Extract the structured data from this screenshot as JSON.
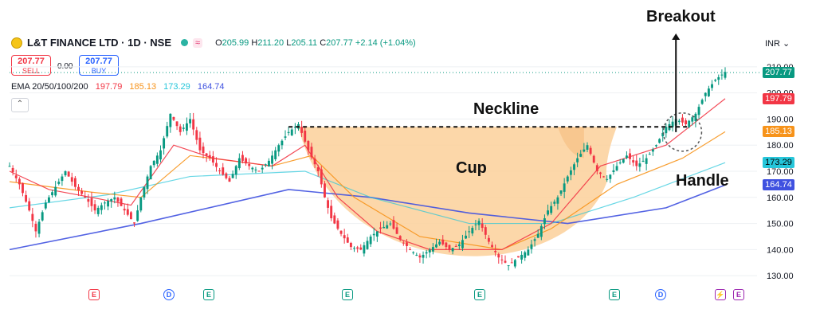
{
  "header": {
    "symbol": "L&T FINANCE LTD · 1D · NSE",
    "ohlc": {
      "o_label": "O",
      "o": "205.99",
      "h_label": "H",
      "h": "211.20",
      "l_label": "L",
      "l": "205.11",
      "c_label": "C",
      "c": "207.77",
      "change": "+2.14 (+1.04%)"
    },
    "pill": "≈"
  },
  "trade": {
    "sell_price": "207.77",
    "sell_label": "SELL",
    "spread": "0.00",
    "buy_price": "207.77",
    "buy_label": "BUY"
  },
  "ema": {
    "label": "EMA 20/50/100/200",
    "values": [
      "197.79",
      "185.13",
      "173.29",
      "164.74"
    ],
    "colors": [
      "#f23645",
      "#f7931a",
      "#26c6da",
      "#3f51e0"
    ]
  },
  "currency": "INR",
  "colors": {
    "up": "#089981",
    "down": "#f23645",
    "cup_fill": "#fbd09a",
    "last_price": "#089981"
  },
  "annotations": {
    "breakout": "Breakout",
    "neckline": "Neckline",
    "cup": "Cup",
    "handle": "Handle"
  },
  "events": [
    {
      "type": "E",
      "color": "#f23645"
    },
    {
      "type": "D",
      "color": "#2962ff"
    },
    {
      "type": "E",
      "color": "#089981"
    },
    {
      "type": "E",
      "color": "#089981"
    },
    {
      "type": "E",
      "color": "#089981"
    },
    {
      "type": "E",
      "color": "#089981"
    },
    {
      "type": "D",
      "color": "#2962ff"
    },
    {
      "type": "⚡",
      "color": "#9c27b0"
    },
    {
      "type": "E",
      "color": "#9c27b0"
    }
  ],
  "chart_data": {
    "type": "line",
    "y_axis_ticks": [
      130,
      140,
      150,
      160,
      170,
      180,
      190,
      200,
      210
    ],
    "ylim": [
      127,
      213
    ],
    "price_tags": [
      {
        "value": 207.77,
        "color": "#089981",
        "text": "207.77"
      },
      {
        "value": 197.79,
        "color": "#f23645",
        "text": "197.79"
      },
      {
        "value": 185.13,
        "color": "#f7931a",
        "text": "185.13"
      },
      {
        "value": 173.29,
        "color": "#26c6da",
        "text": "173.29"
      },
      {
        "value": 164.74,
        "color": "#3f51e0",
        "text": "164.74"
      }
    ],
    "neckline": 187,
    "price_path": [
      [
        0,
        172
      ],
      [
        3,
        165
      ],
      [
        6,
        155
      ],
      [
        8,
        147
      ],
      [
        11,
        158
      ],
      [
        14,
        164
      ],
      [
        17,
        170
      ],
      [
        20,
        164
      ],
      [
        23,
        160
      ],
      [
        26,
        155
      ],
      [
        29,
        158
      ],
      [
        32,
        160
      ],
      [
        35,
        155
      ],
      [
        38,
        150
      ],
      [
        40,
        160
      ],
      [
        43,
        172
      ],
      [
        46,
        178
      ],
      [
        49,
        192
      ],
      [
        52,
        185
      ],
      [
        55,
        190
      ],
      [
        58,
        178
      ],
      [
        61,
        175
      ],
      [
        64,
        170
      ],
      [
        67,
        166
      ],
      [
        70,
        175
      ],
      [
        73,
        172
      ],
      [
        76,
        170
      ],
      [
        79,
        174
      ],
      [
        82,
        180
      ],
      [
        85,
        185
      ],
      [
        88,
        188
      ],
      [
        91,
        178
      ],
      [
        94,
        170
      ],
      [
        96,
        160
      ],
      [
        98,
        152
      ],
      [
        101,
        146
      ],
      [
        104,
        141
      ],
      [
        107,
        140
      ],
      [
        110,
        145
      ],
      [
        113,
        148
      ],
      [
        116,
        150
      ],
      [
        119,
        144
      ],
      [
        122,
        140
      ],
      [
        125,
        137
      ],
      [
        128,
        140
      ],
      [
        131,
        143
      ],
      [
        134,
        140
      ],
      [
        137,
        142
      ],
      [
        140,
        147
      ],
      [
        143,
        151
      ],
      [
        146,
        143
      ],
      [
        149,
        137
      ],
      [
        152,
        134
      ],
      [
        155,
        137
      ],
      [
        158,
        140
      ],
      [
        161,
        146
      ],
      [
        164,
        155
      ],
      [
        167,
        160
      ],
      [
        170,
        168
      ],
      [
        173,
        175
      ],
      [
        176,
        180
      ],
      [
        179,
        170
      ],
      [
        182,
        167
      ],
      [
        185,
        172
      ],
      [
        188,
        176
      ],
      [
        191,
        172
      ],
      [
        194,
        175
      ],
      [
        197,
        180
      ],
      [
        200,
        187
      ],
      [
        203,
        190
      ],
      [
        206,
        188
      ],
      [
        209,
        192
      ],
      [
        212,
        200
      ],
      [
        215,
        205
      ],
      [
        218,
        208
      ]
    ],
    "ema_20": [
      [
        0,
        170
      ],
      [
        12,
        163
      ],
      [
        25,
        160
      ],
      [
        37,
        157
      ],
      [
        50,
        180
      ],
      [
        62,
        175
      ],
      [
        80,
        172
      ],
      [
        90,
        180
      ],
      [
        100,
        160
      ],
      [
        112,
        147
      ],
      [
        128,
        140
      ],
      [
        150,
        140
      ],
      [
        165,
        150
      ],
      [
        180,
        172
      ],
      [
        200,
        180
      ],
      [
        218,
        197.79
      ]
    ],
    "ema_50": [
      [
        0,
        166
      ],
      [
        25,
        162
      ],
      [
        40,
        160
      ],
      [
        55,
        176
      ],
      [
        80,
        172
      ],
      [
        92,
        176
      ],
      [
        105,
        160
      ],
      [
        125,
        145
      ],
      [
        150,
        140
      ],
      [
        165,
        148
      ],
      [
        185,
        165
      ],
      [
        205,
        175
      ],
      [
        218,
        185.13
      ]
    ],
    "ema_100": [
      [
        0,
        156
      ],
      [
        30,
        161
      ],
      [
        55,
        168
      ],
      [
        90,
        170
      ],
      [
        110,
        160
      ],
      [
        140,
        150
      ],
      [
        165,
        150
      ],
      [
        190,
        160
      ],
      [
        218,
        173.29
      ]
    ],
    "ema_200": [
      [
        0,
        140
      ],
      [
        40,
        150
      ],
      [
        85,
        163
      ],
      [
        110,
        160
      ],
      [
        140,
        154
      ],
      [
        170,
        150
      ],
      [
        200,
        156
      ],
      [
        218,
        164.74
      ]
    ]
  }
}
